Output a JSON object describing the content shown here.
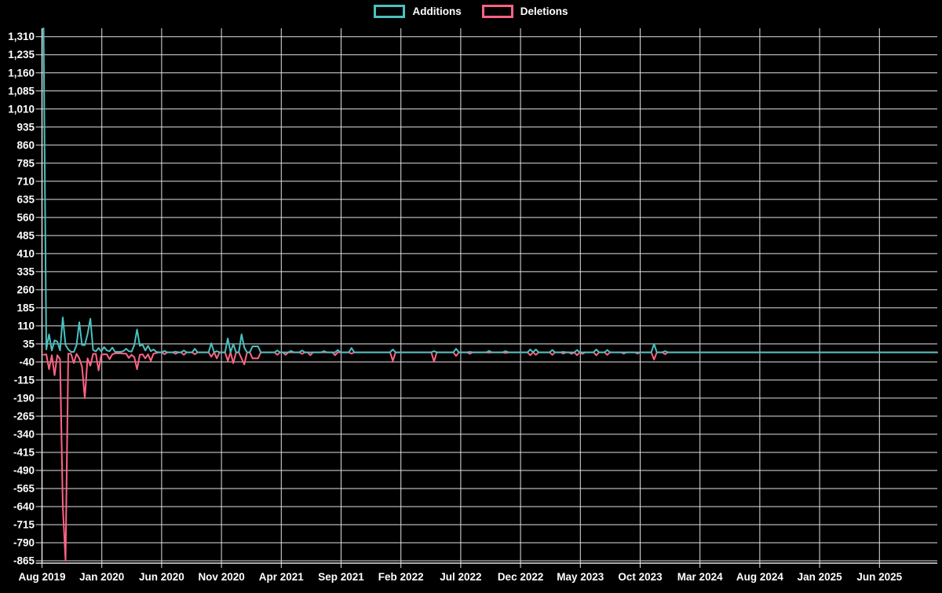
{
  "legend": {
    "items": [
      {
        "label": "Additions",
        "color": "#4bc0c0"
      },
      {
        "label": "Deletions",
        "color": "#ff6384"
      }
    ]
  },
  "y_axis": {
    "labels": [
      "1,310",
      "1,235",
      "1,160",
      "1,085",
      "1,010",
      "935",
      "860",
      "785",
      "710",
      "635",
      "560",
      "485",
      "410",
      "335",
      "260",
      "185",
      "110",
      "35",
      "-40",
      "-115",
      "-190",
      "-265",
      "-340",
      "-415",
      "-490",
      "-565",
      "-640",
      "-715",
      "-790",
      "-865"
    ]
  },
  "x_axis": {
    "labels": [
      "Aug 2019",
      "Jan 2020",
      "Jun 2020",
      "Nov 2020",
      "Apr 2021",
      "Sep 2021",
      "Feb 2022",
      "Jul 2022",
      "Dec 2022",
      "May 2023",
      "Oct 2023",
      "Mar 2024",
      "Aug 2024",
      "Jan 2025",
      "Jun 2025"
    ]
  },
  "chart_data": {
    "type": "line",
    "title": "",
    "x_unit": "week",
    "weeks_total": 326,
    "x_start_label": "Aug 2019",
    "x_end_label": "Jun 2025",
    "ylim": [
      -865,
      1345
    ],
    "y_tick_step": 75,
    "grid": true,
    "legend_position": "top",
    "background_color": "#000000",
    "grid_color": "#e2e2e2",
    "default_value": 0,
    "series": [
      {
        "name": "Additions",
        "color": "#4bc0c0",
        "points_sparse": [
          [
            0,
            1345
          ],
          [
            1,
            12
          ],
          [
            2,
            75
          ],
          [
            3,
            8
          ],
          [
            4,
            50
          ],
          [
            5,
            45
          ],
          [
            6,
            8
          ],
          [
            7,
            145
          ],
          [
            8,
            30
          ],
          [
            9,
            12
          ],
          [
            10,
            2
          ],
          [
            11,
            2
          ],
          [
            12,
            30
          ],
          [
            13,
            125
          ],
          [
            14,
            30
          ],
          [
            15,
            30
          ],
          [
            16,
            75
          ],
          [
            17,
            140
          ],
          [
            18,
            10
          ],
          [
            19,
            4
          ],
          [
            20,
            18
          ],
          [
            21,
            4
          ],
          [
            22,
            22
          ],
          [
            23,
            8
          ],
          [
            24,
            5
          ],
          [
            25,
            20
          ],
          [
            26,
            2
          ],
          [
            27,
            2
          ],
          [
            28,
            2
          ],
          [
            29,
            5
          ],
          [
            30,
            15
          ],
          [
            31,
            5
          ],
          [
            32,
            3
          ],
          [
            33,
            30
          ],
          [
            34,
            95
          ],
          [
            35,
            27
          ],
          [
            36,
            32
          ],
          [
            37,
            8
          ],
          [
            38,
            27
          ],
          [
            39,
            5
          ],
          [
            40,
            12
          ],
          [
            41,
            2
          ],
          [
            44,
            6
          ],
          [
            48,
            3
          ],
          [
            51,
            8
          ],
          [
            55,
            15
          ],
          [
            61,
            38
          ],
          [
            63,
            5
          ],
          [
            67,
            58
          ],
          [
            69,
            35
          ],
          [
            72,
            75
          ],
          [
            73,
            20
          ],
          [
            76,
            25
          ],
          [
            77,
            25
          ],
          [
            78,
            25
          ],
          [
            85,
            8
          ],
          [
            90,
            6
          ],
          [
            94,
            8
          ],
          [
            102,
            5
          ],
          [
            107,
            10
          ],
          [
            112,
            18
          ],
          [
            127,
            12
          ],
          [
            142,
            5
          ],
          [
            150,
            15
          ],
          [
            155,
            2
          ],
          [
            162,
            6
          ],
          [
            168,
            5
          ],
          [
            177,
            12
          ],
          [
            179,
            12
          ],
          [
            185,
            10
          ],
          [
            189,
            2
          ],
          [
            194,
            10
          ],
          [
            201,
            12
          ],
          [
            205,
            10
          ],
          [
            222,
            35
          ],
          [
            226,
            5
          ]
        ]
      },
      {
        "name": "Deletions",
        "color": "#ff6384",
        "points_sparse": [
          [
            0,
            -10
          ],
          [
            1,
            -8
          ],
          [
            2,
            -70
          ],
          [
            3,
            -12
          ],
          [
            4,
            -95
          ],
          [
            5,
            -12
          ],
          [
            6,
            -28
          ],
          [
            7,
            -640
          ],
          [
            8,
            -865
          ],
          [
            9,
            -5
          ],
          [
            10,
            -6
          ],
          [
            11,
            -45
          ],
          [
            12,
            -6
          ],
          [
            13,
            -25
          ],
          [
            14,
            -60
          ],
          [
            15,
            -190
          ],
          [
            16,
            -25
          ],
          [
            17,
            -55
          ],
          [
            18,
            -6
          ],
          [
            19,
            -6
          ],
          [
            20,
            -75
          ],
          [
            21,
            -10
          ],
          [
            22,
            -8
          ],
          [
            23,
            -8
          ],
          [
            24,
            -28
          ],
          [
            25,
            -8
          ],
          [
            26,
            -4
          ],
          [
            27,
            -4
          ],
          [
            28,
            -4
          ],
          [
            29,
            -5
          ],
          [
            30,
            -5
          ],
          [
            31,
            -23
          ],
          [
            32,
            -10
          ],
          [
            33,
            -20
          ],
          [
            34,
            -70
          ],
          [
            35,
            -10
          ],
          [
            36,
            -8
          ],
          [
            37,
            -25
          ],
          [
            38,
            -8
          ],
          [
            39,
            -35
          ],
          [
            40,
            -5
          ],
          [
            41,
            -3
          ],
          [
            44,
            -8
          ],
          [
            48,
            -6
          ],
          [
            51,
            -10
          ],
          [
            55,
            -8
          ],
          [
            61,
            -18
          ],
          [
            63,
            -25
          ],
          [
            67,
            -35
          ],
          [
            69,
            -45
          ],
          [
            72,
            -25
          ],
          [
            73,
            -50
          ],
          [
            76,
            -25
          ],
          [
            77,
            -25
          ],
          [
            78,
            -25
          ],
          [
            85,
            -10
          ],
          [
            88,
            -10
          ],
          [
            94,
            -6
          ],
          [
            97,
            -12
          ],
          [
            106,
            -12
          ],
          [
            112,
            -5
          ],
          [
            127,
            -35
          ],
          [
            142,
            -38
          ],
          [
            150,
            -15
          ],
          [
            155,
            -6
          ],
          [
            162,
            -2
          ],
          [
            168,
            -3
          ],
          [
            177,
            -12
          ],
          [
            179,
            -10
          ],
          [
            185,
            -10
          ],
          [
            189,
            -5
          ],
          [
            192,
            -6
          ],
          [
            194,
            -12
          ],
          [
            196,
            -6
          ],
          [
            201,
            -12
          ],
          [
            205,
            -10
          ],
          [
            211,
            -5
          ],
          [
            216,
            -5
          ],
          [
            222,
            -30
          ],
          [
            226,
            -8
          ]
        ]
      }
    ]
  }
}
